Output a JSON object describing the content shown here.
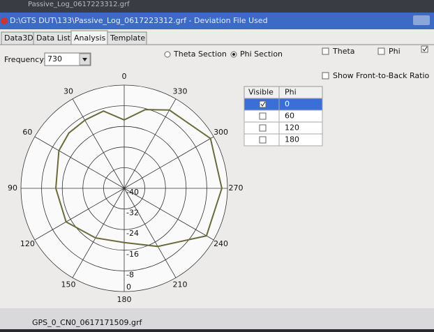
{
  "window": {
    "title_above": "Passive_Log_0617223312.grf",
    "title": "D:\\GTS DUT\\133\\Passive_Log_0617223312.grf - Deviation File Used"
  },
  "tabs": [
    "Data3D",
    "Data List",
    "Analysis",
    "Template"
  ],
  "controls": {
    "frequency_label": "Frequency:",
    "frequency": "730",
    "theta_section": "Theta Section",
    "phi_section": "Phi Section",
    "theta": "Theta",
    "phi": "Phi",
    "front_to_back": "Show Front-to-Back Ratio"
  },
  "table": {
    "headers": [
      "Visible",
      "Phi"
    ],
    "rows": [
      "0",
      "60",
      "120",
      "180"
    ]
  },
  "chart_data": {
    "type": "polar",
    "thetaticks": [
      0,
      30,
      60,
      90,
      120,
      150,
      180,
      210,
      240,
      270,
      300,
      330
    ],
    "rlim": [
      -40,
      0
    ],
    "rticks": [
      -40,
      -32,
      -24,
      -16,
      -8,
      0
    ],
    "series": [
      {
        "color": "#6b6a3c",
        "theta": [
          0,
          15,
          30,
          45,
          60,
          90,
          120,
          150,
          180,
          210,
          240,
          270,
          300,
          330,
          345
        ],
        "values": [
          -13.5,
          -9,
          -9.5,
          -9.7,
          -10.8,
          -13.5,
          -14,
          -17.8,
          -19,
          -14,
          -3.2,
          -2.2,
          -1.4,
          -5,
          -8.4
        ]
      }
    ]
  },
  "status": "GPS_0_CN0_0617171509.grf"
}
